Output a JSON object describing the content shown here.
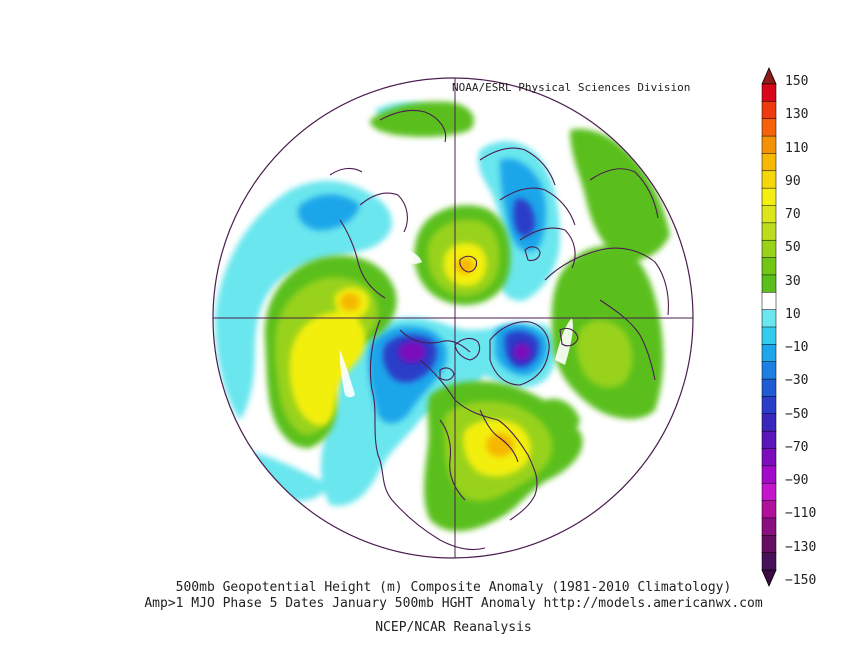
{
  "credit": "NOAA/ESRL Physical Sciences Division",
  "captions": {
    "line1": "500mb Geopotential Height (m) Composite Anomaly (1981-2010 Climatology)",
    "line2": "Amp>1 MJO Phase 5 Dates January 500mb  HGHT Anomaly http://models.americanwx.com",
    "line3": "NCEP/NCAR Reanalysis"
  },
  "colorbar": {
    "labels": [
      "150",
      "130",
      "110",
      "90",
      "70",
      "50",
      "30",
      "10",
      "−10",
      "−30",
      "−50",
      "−70",
      "−90",
      "−110",
      "−130",
      "−150"
    ],
    "colors": [
      "#d7061b",
      "#ef3a10",
      "#f5620a",
      "#f39207",
      "#f5b805",
      "#f6d60c",
      "#f3ef11",
      "#dbe61a",
      "#bcdd1d",
      "#98d21b",
      "#72c616",
      "#5abf1c",
      "#ffffff",
      "#6be6ee",
      "#35cbef",
      "#1fa6ea",
      "#1c80e2",
      "#1f5cd4",
      "#2a3cc8",
      "#3a26bd",
      "#5a16b9",
      "#7c0cbc",
      "#a00ac8",
      "#c414cc",
      "#b00f9c",
      "#8a0f7e",
      "#650d62",
      "#49105a"
    ]
  },
  "map": {
    "projection": "polar-stereographic",
    "colors": {
      "positive_weak": "#5abf1c",
      "positive_mid": "#98d21b",
      "positive_strong": "#f3ef11",
      "positive_peak": "#f5b805",
      "negative_weak": "#6be6ee",
      "negative_mid": "#1fa6ea",
      "negative_strong": "#2a3cc8",
      "negative_peak": "#7c0cbc",
      "coastline": "#4b1d4f"
    }
  }
}
